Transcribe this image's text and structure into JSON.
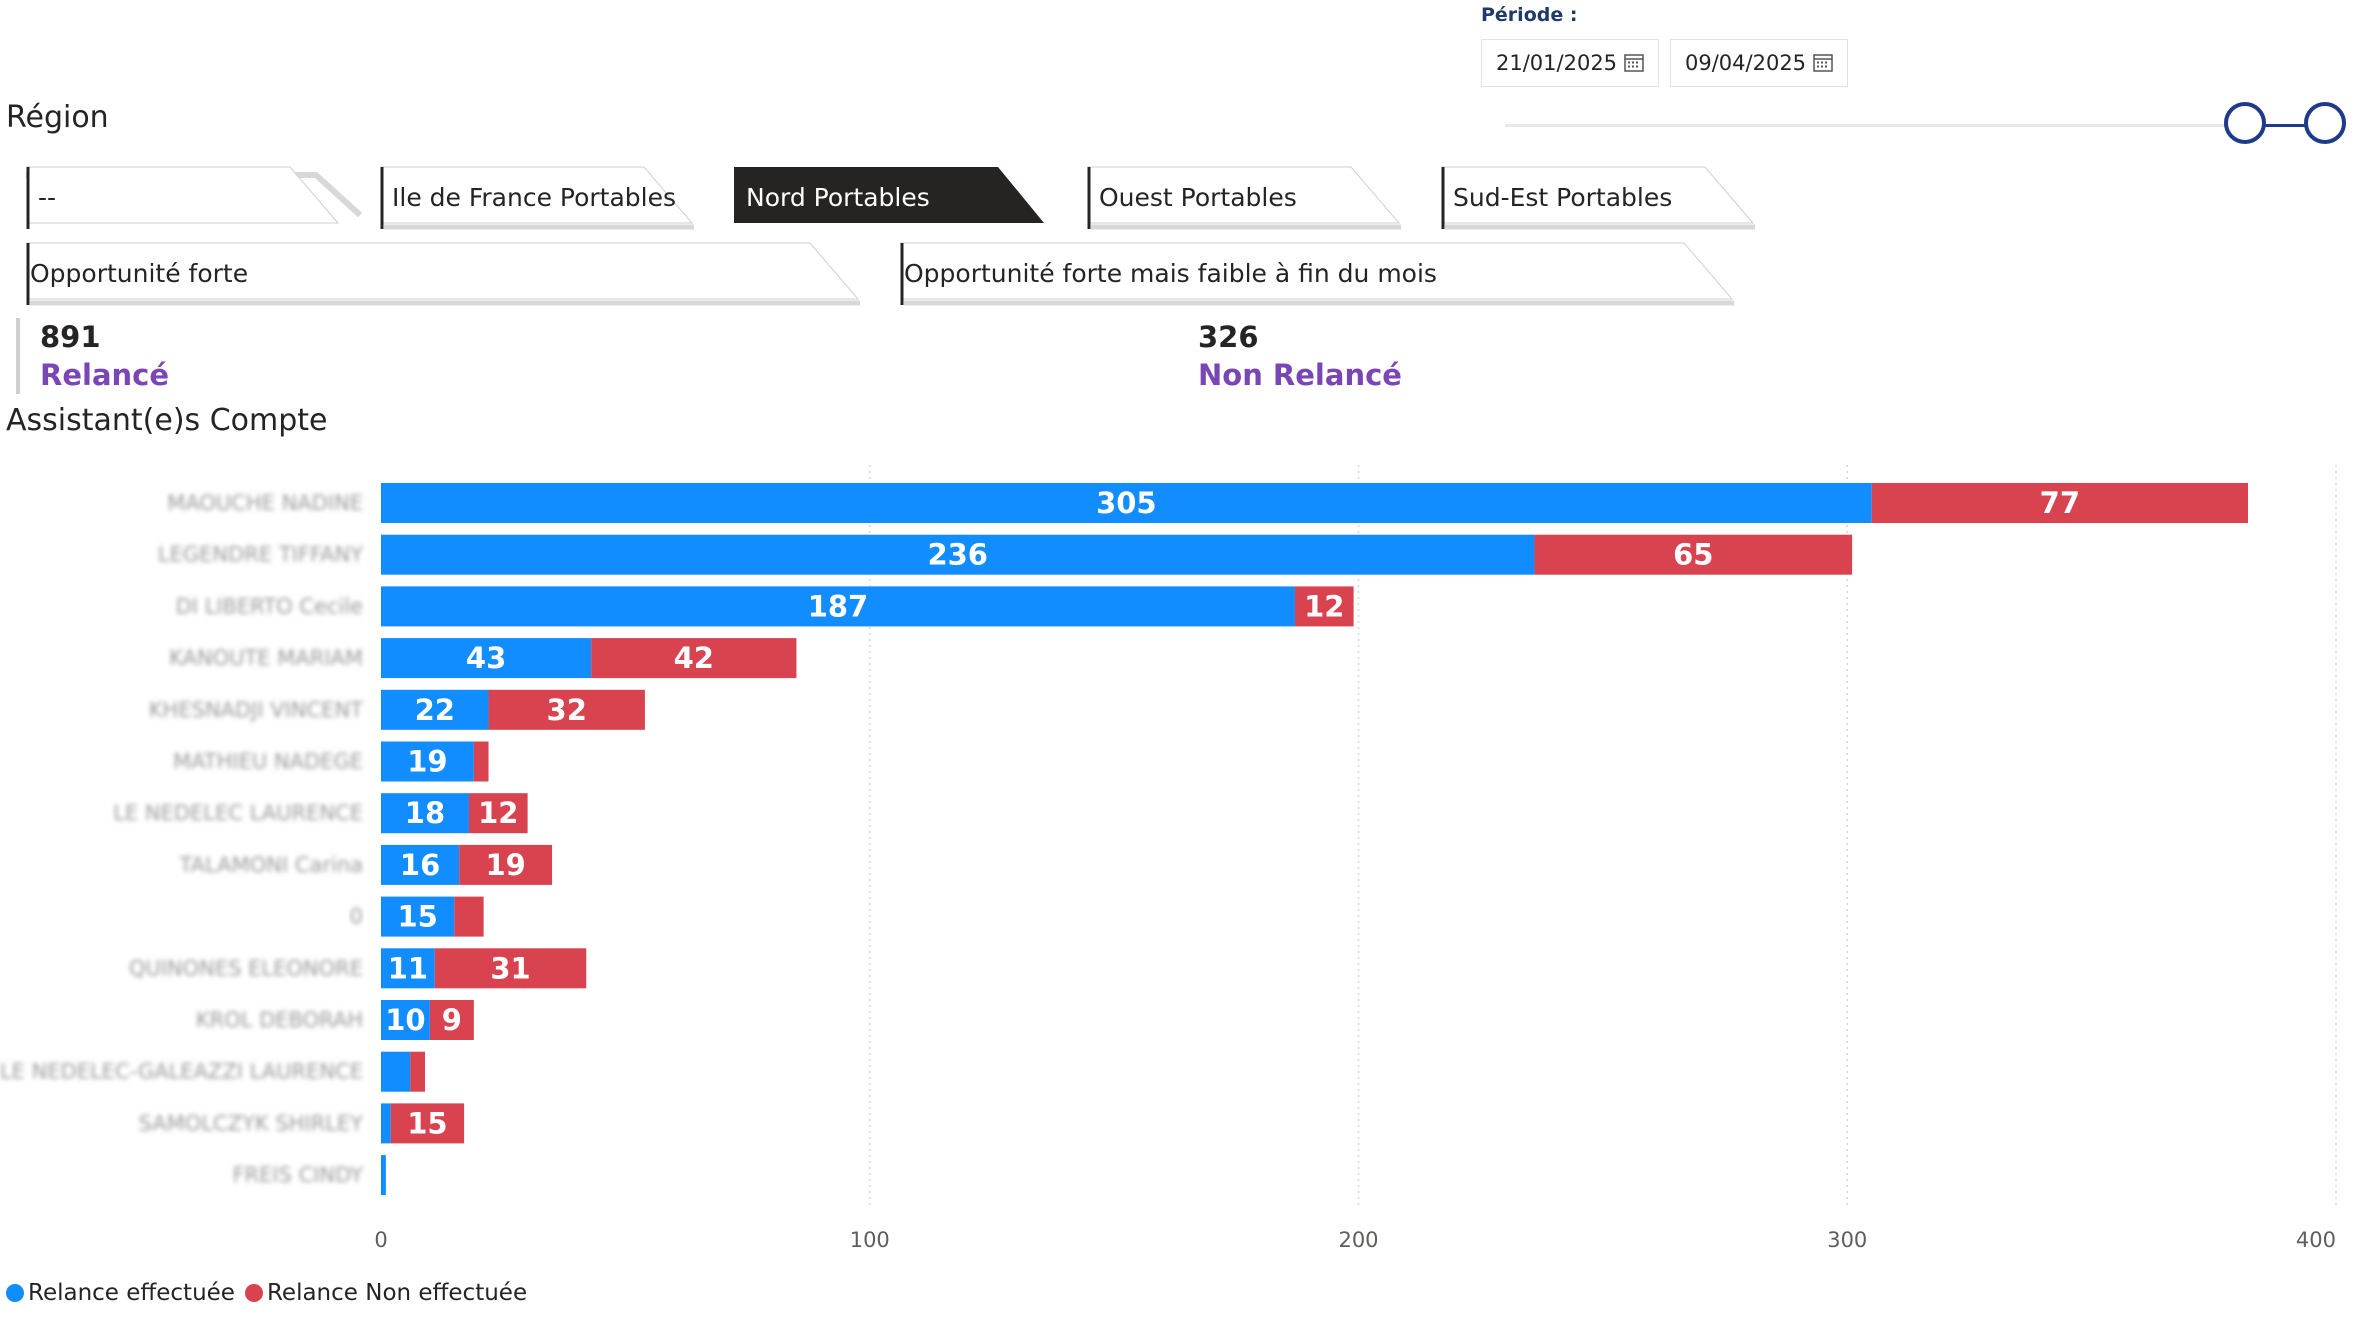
{
  "period": {
    "label": "Période :",
    "start": "21/01/2025",
    "end": "09/04/2025"
  },
  "region": {
    "title": "Région",
    "chips_row1": [
      {
        "label": "--",
        "selected": false
      },
      {
        "label": "Ile de France Portables",
        "selected": false
      },
      {
        "label": "Nord Portables",
        "selected": true
      },
      {
        "label": "Ouest Portables",
        "selected": false
      },
      {
        "label": "Sud-Est Portables",
        "selected": false
      }
    ],
    "chips_row2": [
      {
        "label": "Opportunité forte",
        "selected": false
      },
      {
        "label": "Opportunité forte mais faible à fin du mois",
        "selected": false
      }
    ]
  },
  "kpis": [
    {
      "value": "891",
      "label": "Relancé"
    },
    {
      "value": "326",
      "label": "Non Relancé"
    }
  ],
  "colors": {
    "relance": "#118dff",
    "non_relance": "#d9434f",
    "selected_chip": "#252423",
    "accent": "#1f3a8a"
  },
  "chart_data": {
    "type": "bar",
    "orientation": "horizontal",
    "stacked": true,
    "title": "Assistant(e)s Compte",
    "categories": [
      "MAOUCHE NADINE",
      "LEGENDRE TIFFANY",
      "DI LIBERTO Cecile",
      "KANOUTE MARIAM",
      "KHESNADJI VINCENT",
      "MATHIEU NADEGE",
      "LE NEDELEC LAURENCE",
      "TALAMONI Carina",
      "0",
      "QUINONES ELEONORE",
      "KROL DEBORAH",
      "LE NEDELEC-GALEAZZI LAURENCE",
      "SAMOLCZYK SHIRLEY",
      "FREIS CINDY"
    ],
    "series": [
      {
        "name": "Relance effectuée",
        "values": [
          305,
          236,
          187,
          43,
          22,
          19,
          18,
          16,
          15,
          11,
          10,
          6,
          2,
          1
        ]
      },
      {
        "name": "Relance Non effectuée",
        "values": [
          77,
          65,
          12,
          42,
          32,
          3,
          12,
          19,
          6,
          31,
          9,
          3,
          15,
          0
        ]
      }
    ],
    "xlim": [
      0,
      400
    ],
    "xticks": [
      0,
      100,
      200,
      300,
      400
    ],
    "grid": true,
    "legend": "bottom-left"
  }
}
